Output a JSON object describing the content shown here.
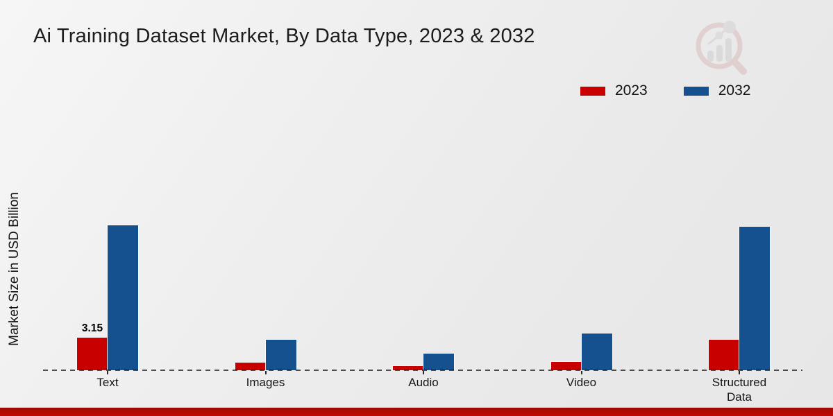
{
  "chart_data": {
    "type": "bar",
    "title": "Ai Training Dataset Market, By Data Type, 2023 & 2032",
    "ylabel": "Market Size in USD Billion",
    "xlabel": "",
    "categories": [
      "Text",
      "Images",
      "Audio",
      "Video",
      "Structured Data"
    ],
    "series": [
      {
        "name": "2023",
        "color": "#c80000",
        "values": [
          3.15,
          0.75,
          0.4,
          0.8,
          3.0
        ]
      },
      {
        "name": "2032",
        "color": "#15518e",
        "values": [
          14.1,
          3.0,
          1.65,
          3.6,
          14.0
        ]
      }
    ],
    "bar_labels": [
      {
        "series": "2023",
        "category": "Text",
        "text": "3.15"
      }
    ],
    "legend": {
      "position": "top-right",
      "entries": [
        "2023",
        "2032"
      ]
    },
    "grid": false,
    "baseline_style": "dashed",
    "ylim": [
      0,
      15
    ]
  },
  "branding": {
    "logo_icon": "magnifier-bar-chart-watermark",
    "footer_accent_color": "#bf0a03"
  }
}
